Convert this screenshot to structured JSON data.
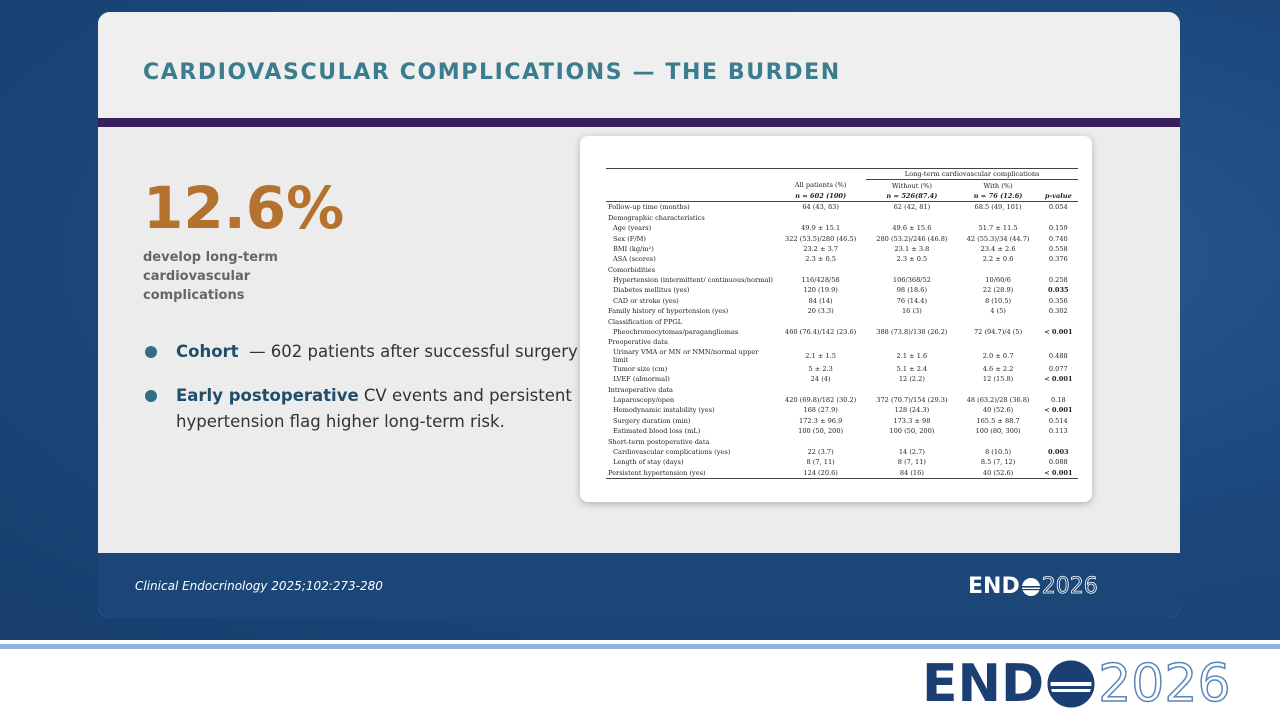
{
  "slide": {
    "title": "CARDIOVASCULAR COMPLICATIONS — THE BURDEN",
    "stat": {
      "value": "12.6%",
      "caption": "develop long-term cardiovascular complications"
    },
    "bullets": [
      {
        "lead": "Cohort",
        "text": "— 602 patients after successful surgery"
      },
      {
        "lead": "Early postoperative",
        "text": "CV events and persistent hypertension flag higher long-term risk."
      }
    ],
    "citation": "Clinical Endocrinology 2025;102:273-280",
    "logo": {
      "left": "END",
      "right": "2026"
    }
  },
  "table": {
    "group_header": "Long-term cardiovascular complications",
    "columns": [
      {
        "label": "All patients (%)",
        "n": "n = 602 (100)"
      },
      {
        "label": "Without (%)",
        "n": "n = 526(87.4)"
      },
      {
        "label": "With (%)",
        "n": "n = 76 (12.6)"
      }
    ],
    "p_header": "p-value",
    "rows": [
      [
        "Follow-up time (months)",
        "64 (43, 83)",
        "62 (42, 81)",
        "68.5 (49, 101)",
        "0.054"
      ],
      [
        "Demographic characteristics"
      ],
      [
        "Age (years)",
        "49.9 ± 15.1",
        "49.6 ± 15.6",
        "51.7 ± 11.5",
        "0.159"
      ],
      [
        "Sex (F/M)",
        "322 (53.5)/280 (46.5)",
        "280 (53.2)/246 (46.8)",
        "42 (55.3)/34 (44.7)",
        "0.740"
      ],
      [
        "BMI (kg/m²)",
        "23.2 ± 3.7",
        "23.1 ± 3.8",
        "23.4 ± 2.6",
        "0.558"
      ],
      [
        "ASA (scores)",
        "2.3 ± 0.5",
        "2.3 ± 0.5",
        "2.2 ± 0.6",
        "0.376"
      ],
      [
        "Comorbidities"
      ],
      [
        "Hypertension (intermittent/ continuous/normal)",
        "116/428/58",
        "106/368/52",
        "10/60/6",
        "0.258"
      ],
      [
        "Diabetes mellitus (yes)",
        "120 (19.9)",
        "98 (18.6)",
        "22 (28.9)",
        "0.035"
      ],
      [
        "CAD or stroke (yes)",
        "84 (14)",
        "76 (14.4)",
        "8 (10.5)",
        "0.356"
      ],
      [
        "Family history of hypertension (yes)",
        "20 (3.3)",
        "16 (3)",
        "4 (5)",
        "0.302"
      ],
      [
        "Classification of PPGL"
      ],
      [
        "Pheochromocytomas/paragangliomas",
        "460 (76.4)/142 (23.6)",
        "388 (73.8)/138 (26.2)",
        "72 (94.7)/4 (5)",
        "< 0.001"
      ],
      [
        "Preoperative data"
      ],
      [
        "Urinary VMA or MN or NMN/normal upper limit",
        "2.1 ± 1.5",
        "2.1 ± 1.6",
        "2.0 ± 0.7",
        "0.488"
      ],
      [
        "Tumor size (cm)",
        "5 ± 2.3",
        "5.1 ± 2.4",
        "4.6 ± 2.2",
        "0.077"
      ],
      [
        "LVEF (abnormal)",
        "24 (4)",
        "12 (2.2)",
        "12 (15.8)",
        "< 0.001"
      ],
      [
        "Intraoperative data"
      ],
      [
        "Laparoscopy/open",
        "420 (69.8)/182 (30.2)",
        "372 (70.7)/154 (29.3)",
        "48 (63.2)/28 (36.8)",
        "0.18"
      ],
      [
        "Hemodynamic instability (yes)",
        "168 (27.9)",
        "128 (24.3)",
        "40 (52.6)",
        "< 0.001"
      ],
      [
        "Surgery duration (min)",
        "172.3 ± 96.9",
        "173.3 ± 98",
        "165.5 ± 88.7",
        "0.514"
      ],
      [
        "Estimated blood loss (mL)",
        "100 (50, 200)",
        "100 (50, 200)",
        "100 (80, 300)",
        "0.113"
      ],
      [
        "Short-term postoperative data"
      ],
      [
        "Cardiovascular complications (yes)",
        "22 (3.7)",
        "14 (2.7)",
        "8 (10.5)",
        "0.003"
      ],
      [
        "Length of stay (days)",
        "8 (7, 11)",
        "8 (7, 11)",
        "8.5 (7, 12)",
        "0.088"
      ],
      [
        "Persistent hypertension (yes)",
        "124 (20.6)",
        "84 (16)",
        "40 (52.6)",
        "< 0.001"
      ]
    ]
  }
}
